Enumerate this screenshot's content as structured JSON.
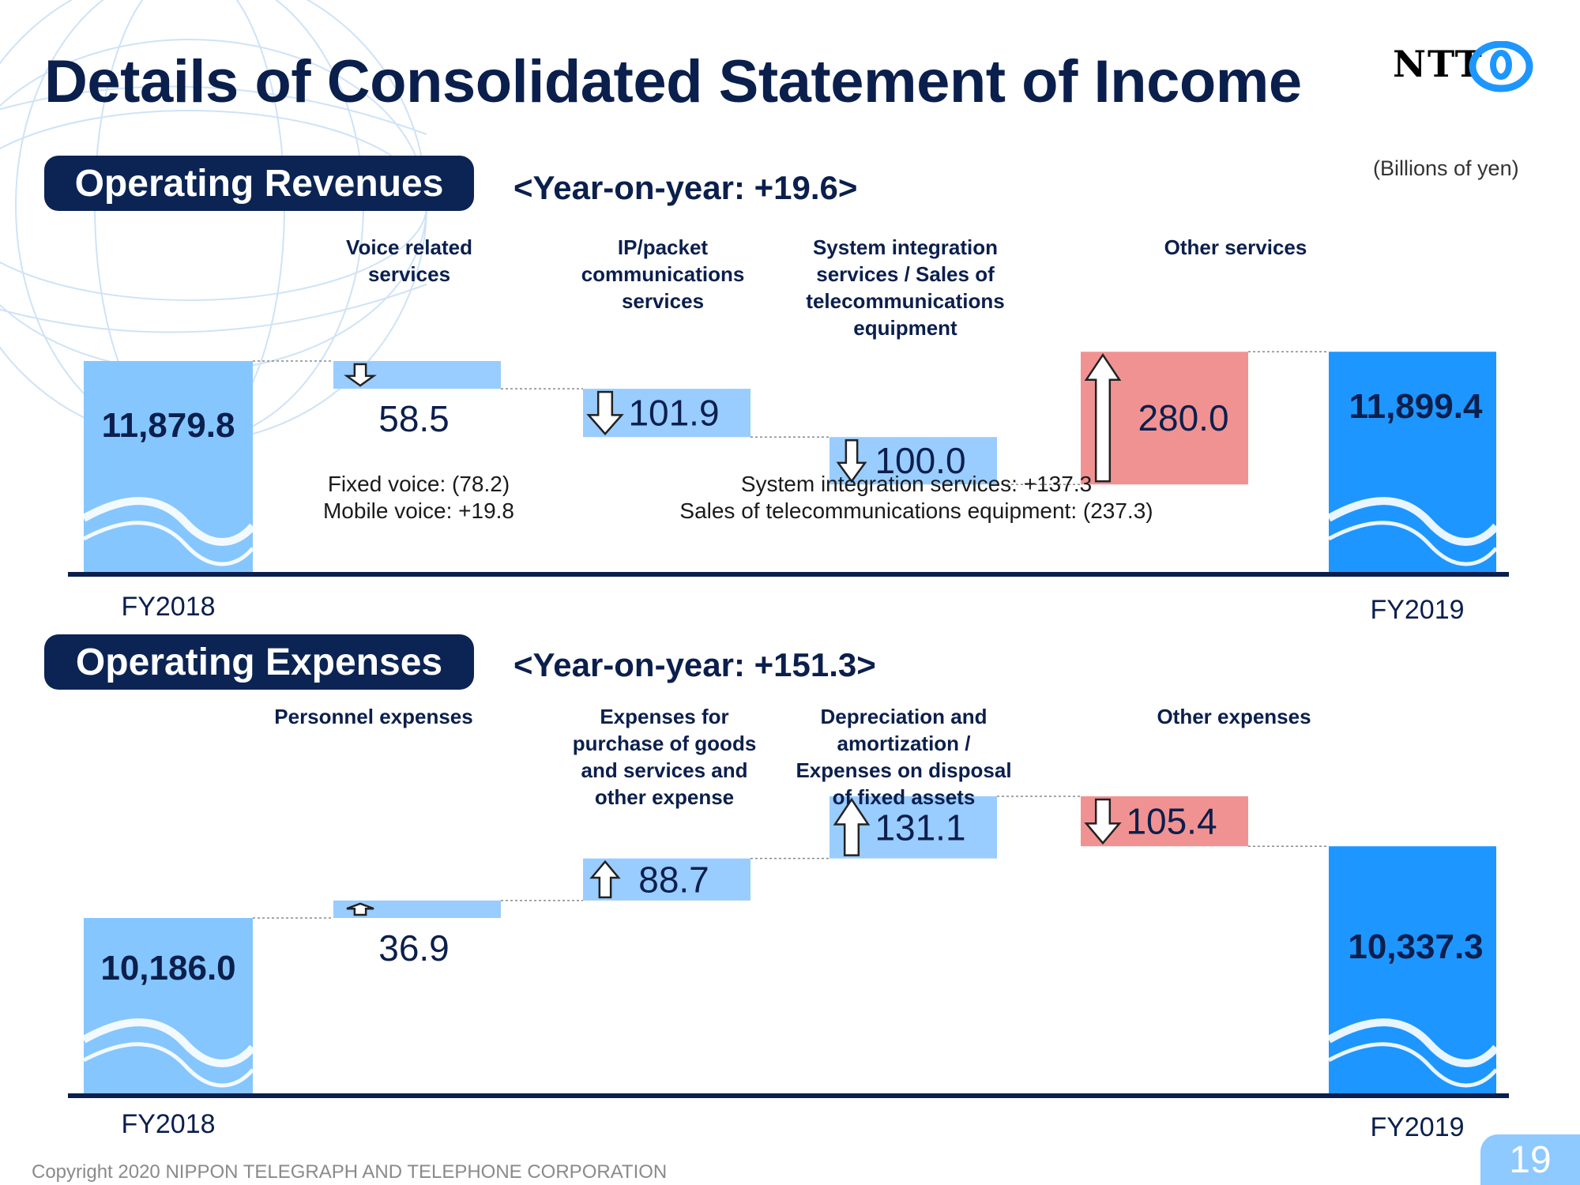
{
  "page": {
    "title": "Details of Consolidated Statement of Income",
    "units": "(Billions of yen)",
    "logo_text": "NTT",
    "footer": "Copyright 2020 NIPPON TELEGRAPH AND TELEPHONE CORPORATION",
    "page_number": "19",
    "colors": {
      "navy": "#0b2454",
      "start_bar": "#85c6ff",
      "end_bar": "#1e96ff",
      "step_bar": "#99ccff",
      "up_bar": "#f19292"
    }
  },
  "revenues": {
    "heading": "Operating Revenues",
    "yoy": "<Year-on-year: +19.6>",
    "notes": [
      [
        "Fixed voice: (78.2)",
        "Mobile voice: +19.8"
      ],
      [
        "System integration services: +137.3",
        "Sales of telecommunications equipment: (237.3)"
      ]
    ]
  },
  "expenses": {
    "heading": "Operating Expenses",
    "yoy": "<Year-on-year: +151.3>"
  },
  "chart_data": [
    {
      "type": "bar",
      "subtype": "waterfall",
      "title": "Operating Revenues",
      "start": {
        "label": "FY2018",
        "value": 11879.8,
        "text": "11,879.8"
      },
      "end": {
        "label": "FY2019",
        "value": 11899.4,
        "text": "11,899.4"
      },
      "steps": [
        {
          "label": [
            "Voice related",
            "services"
          ],
          "value": -58.5,
          "text": "58.5"
        },
        {
          "label": [
            "IP/packet",
            "communications",
            "services"
          ],
          "value": -101.9,
          "text": "101.9"
        },
        {
          "label": [
            "System integration",
            "services / Sales of",
            "telecommunications",
            "equipment"
          ],
          "value": -100.0,
          "text": "100.0"
        },
        {
          "label": [
            "Other services"
          ],
          "value": 280.0,
          "text": "280.0"
        }
      ]
    },
    {
      "type": "bar",
      "subtype": "waterfall",
      "title": "Operating Expenses",
      "start": {
        "label": "FY2018",
        "value": 10186.0,
        "text": "10,186.0"
      },
      "end": {
        "label": "FY2019",
        "value": 10337.3,
        "text": "10,337.3"
      },
      "steps": [
        {
          "label": [
            "Personnel expenses"
          ],
          "value": 36.9,
          "text": "36.9"
        },
        {
          "label": [
            "Expenses for",
            "purchase of goods",
            "and services and",
            "other expense"
          ],
          "value": 88.7,
          "text": "88.7"
        },
        {
          "label": [
            "Depreciation and",
            "amortization /",
            "Expenses on disposal",
            "of fixed assets"
          ],
          "value": 131.1,
          "text": "131.1"
        },
        {
          "label": [
            "Other expenses"
          ],
          "value": -105.4,
          "text": "105.4"
        }
      ]
    }
  ]
}
